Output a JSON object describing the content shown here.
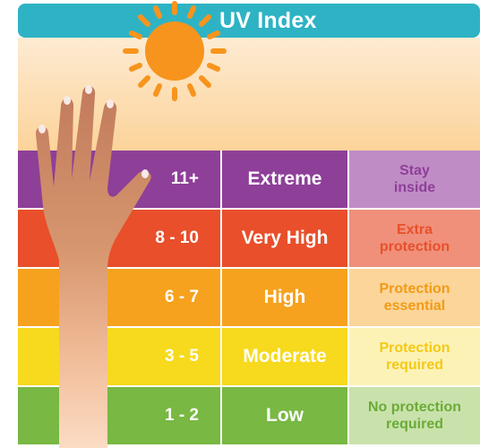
{
  "title": "UV Index",
  "icons": {
    "sun": "sun-icon",
    "hand": "hand-illustration"
  },
  "colors": {
    "title_bar": "#2eb3c4"
  },
  "levels": [
    {
      "range": "11+",
      "label": "Extreme",
      "advice_lines": [
        "Stay",
        "inside"
      ],
      "color": "#8e3f98",
      "advice_bg": "#c08cc6",
      "advice_text": "#8e3f98"
    },
    {
      "range": "8 - 10",
      "label": "Very High",
      "advice_lines": [
        "Extra",
        "protection"
      ],
      "color": "#e84f2a",
      "advice_bg": "#f0907a",
      "advice_text": "#e84f2a"
    },
    {
      "range": "6 - 7",
      "label": "High",
      "advice_lines": [
        "Protection",
        "essential"
      ],
      "color": "#f6a21e",
      "advice_bg": "#fbd59a",
      "advice_text": "#f29b15"
    },
    {
      "range": "3 - 5",
      "label": "Moderate",
      "advice_lines": [
        "Protection",
        "required"
      ],
      "color": "#f7d91e",
      "advice_bg": "#fdf2b6",
      "advice_text": "#f4c914"
    },
    {
      "range": "1 - 2",
      "label": "Low",
      "advice_lines": [
        "No protection",
        "required"
      ],
      "color": "#78b843",
      "advice_bg": "#c9e2ab",
      "advice_text": "#6bab37"
    }
  ]
}
